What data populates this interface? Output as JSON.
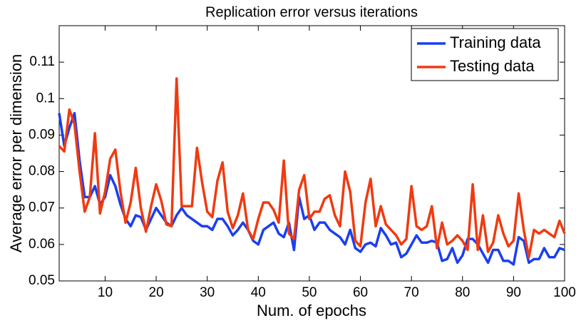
{
  "chart_data": {
    "type": "line",
    "title": "Replication error versus iterations",
    "x_label": "Num. of epochs",
    "y_label": "Average error per dimension",
    "x": [
      1,
      2,
      3,
      4,
      5,
      6,
      7,
      8,
      9,
      10,
      11,
      12,
      13,
      14,
      15,
      16,
      17,
      18,
      19,
      20,
      21,
      22,
      23,
      24,
      25,
      26,
      27,
      28,
      29,
      30,
      31,
      32,
      33,
      34,
      35,
      36,
      37,
      38,
      39,
      40,
      41,
      42,
      43,
      44,
      45,
      46,
      47,
      48,
      49,
      50,
      51,
      52,
      53,
      54,
      55,
      56,
      57,
      58,
      59,
      60,
      61,
      62,
      63,
      64,
      65,
      66,
      67,
      68,
      69,
      70,
      71,
      72,
      73,
      74,
      75,
      76,
      77,
      78,
      79,
      80,
      81,
      82,
      83,
      84,
      85,
      86,
      87,
      88,
      89,
      90,
      91,
      92,
      93,
      94,
      95,
      96,
      97,
      98,
      99,
      100
    ],
    "series": [
      {
        "name": "Training data",
        "color": "#1a3ff0",
        "values": [
          0.096,
          0.087,
          0.092,
          0.096,
          0.083,
          0.073,
          0.073,
          0.076,
          0.071,
          0.073,
          0.079,
          0.076,
          0.071,
          0.067,
          0.065,
          0.068,
          0.0675,
          0.064,
          0.067,
          0.07,
          0.068,
          0.066,
          0.065,
          0.068,
          0.07,
          0.068,
          0.067,
          0.066,
          0.065,
          0.065,
          0.064,
          0.067,
          0.067,
          0.065,
          0.0625,
          0.064,
          0.066,
          0.064,
          0.061,
          0.06,
          0.064,
          0.065,
          0.066,
          0.063,
          0.062,
          0.066,
          0.0585,
          0.073,
          0.067,
          0.068,
          0.064,
          0.066,
          0.066,
          0.064,
          0.063,
          0.062,
          0.06,
          0.064,
          0.059,
          0.058,
          0.06,
          0.0605,
          0.0595,
          0.0645,
          0.0625,
          0.06,
          0.0605,
          0.0565,
          0.0575,
          0.06,
          0.0625,
          0.0605,
          0.0605,
          0.061,
          0.0605,
          0.0555,
          0.056,
          0.059,
          0.055,
          0.057,
          0.0615,
          0.0615,
          0.06,
          0.0575,
          0.055,
          0.0585,
          0.0585,
          0.0555,
          0.0555,
          0.0545,
          0.062,
          0.061,
          0.055,
          0.056,
          0.056,
          0.059,
          0.0565,
          0.0565,
          0.059,
          0.0585
        ]
      },
      {
        "name": "Testing data",
        "color": "#f03a10",
        "values": [
          0.087,
          0.0855,
          0.097,
          0.093,
          0.08,
          0.069,
          0.073,
          0.0905,
          0.0685,
          0.0745,
          0.0835,
          0.086,
          0.0745,
          0.066,
          0.0715,
          0.081,
          0.07,
          0.0635,
          0.0705,
          0.0765,
          0.072,
          0.0655,
          0.065,
          0.1055,
          0.0705,
          0.0705,
          0.0705,
          0.0865,
          0.077,
          0.069,
          0.0675,
          0.0775,
          0.0825,
          0.069,
          0.0645,
          0.068,
          0.074,
          0.064,
          0.0615,
          0.067,
          0.0715,
          0.0715,
          0.0695,
          0.066,
          0.083,
          0.063,
          0.0615,
          0.075,
          0.079,
          0.067,
          0.069,
          0.069,
          0.0725,
          0.0735,
          0.068,
          0.065,
          0.08,
          0.0745,
          0.061,
          0.0595,
          0.0715,
          0.078,
          0.065,
          0.0705,
          0.0655,
          0.064,
          0.0625,
          0.06,
          0.0615,
          0.076,
          0.065,
          0.064,
          0.065,
          0.0705,
          0.059,
          0.066,
          0.06,
          0.061,
          0.0625,
          0.061,
          0.0585,
          0.0765,
          0.0585,
          0.068,
          0.058,
          0.0605,
          0.068,
          0.063,
          0.0595,
          0.061,
          0.074,
          0.064,
          0.0565,
          0.064,
          0.063,
          0.064,
          0.063,
          0.062,
          0.0665,
          0.063
        ]
      }
    ],
    "xlim": [
      1,
      100
    ],
    "xticks": [
      10,
      20,
      30,
      40,
      50,
      60,
      70,
      80,
      90,
      100
    ],
    "ylim": [
      0.05,
      0.12
    ],
    "yticks": [
      0.05,
      0.06,
      0.07,
      0.08,
      0.09,
      0.1,
      0.11
    ],
    "legend": "northeast"
  }
}
